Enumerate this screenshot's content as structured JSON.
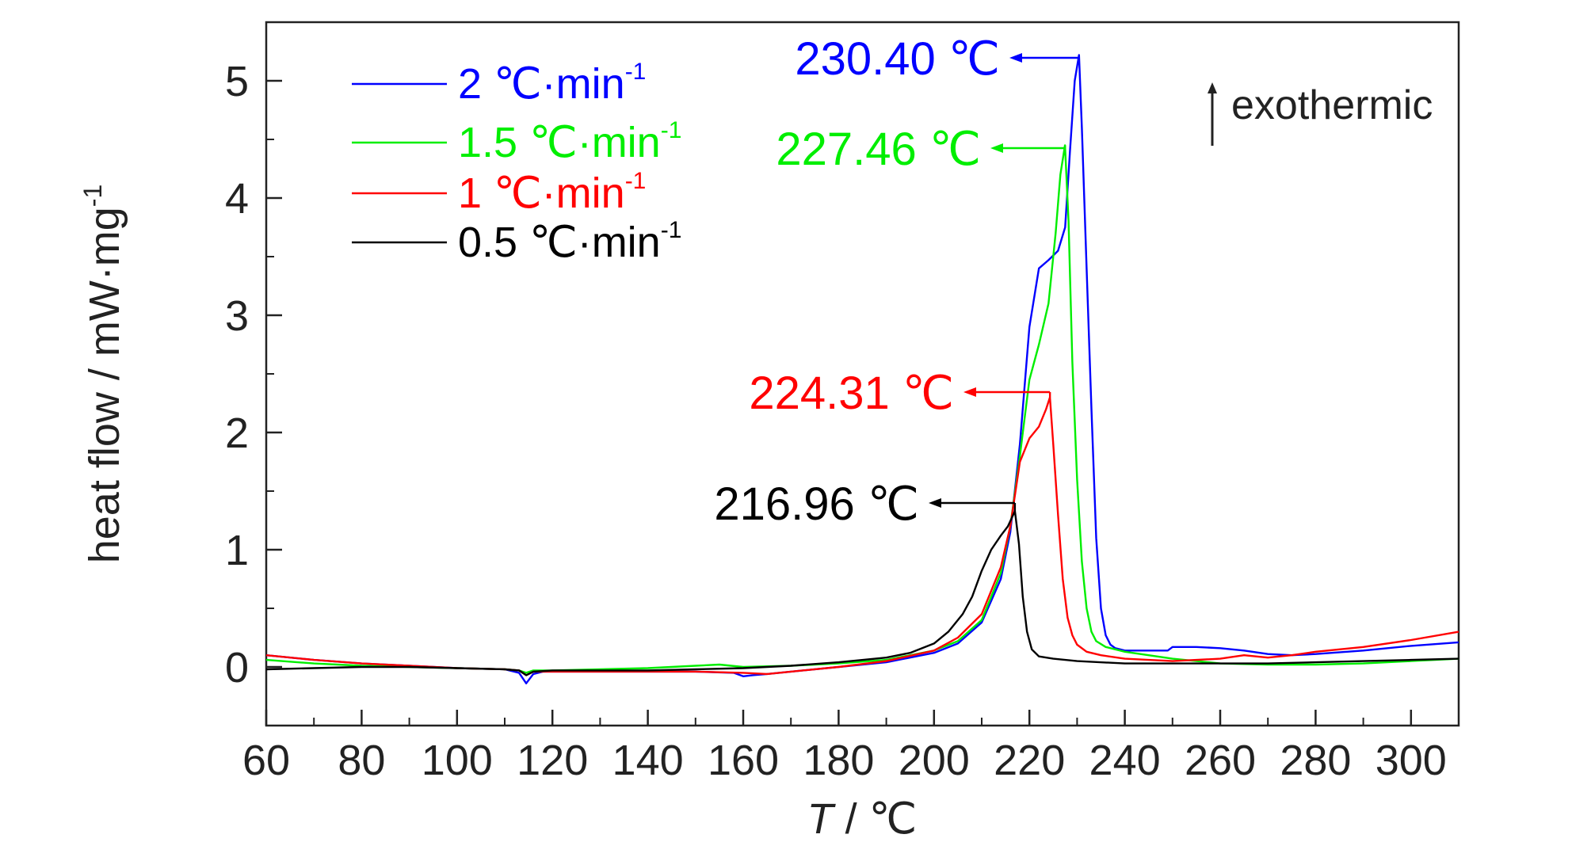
{
  "chart_data": {
    "type": "line",
    "xlabel": "T / ℃",
    "xlabel_italic_part": "T",
    "xlabel_rest": " / ℃",
    "ylabel": "heat flow / mW·mg",
    "ylabel_base": "heat flow / mW·mg",
    "ylabel_sup": "-1",
    "xlim": [
      60,
      310
    ],
    "ylim": [
      -0.5,
      5.5
    ],
    "x_ticks": [
      60,
      80,
      100,
      120,
      140,
      160,
      180,
      200,
      220,
      240,
      260,
      280,
      300
    ],
    "x_tick_labels": [
      "60",
      "80",
      "100",
      "120",
      "140",
      "160",
      "180",
      "200",
      "220",
      "240",
      "260",
      "280",
      "300"
    ],
    "y_ticks": [
      0,
      1,
      2,
      3,
      4,
      5
    ],
    "y_tick_labels": [
      "0",
      "1",
      "2",
      "3",
      "4",
      "5"
    ],
    "grid": false,
    "legend_position": "top-left",
    "exothermic_label": "exothermic",
    "series": [
      {
        "name": "2 ℃·min",
        "name_sup": "-1",
        "color": "#0000ff",
        "peak_label": "230.40 ℃",
        "peak": [
          230.4,
          5.22
        ],
        "x": [
          60,
          70,
          80,
          90,
          100,
          110,
          113,
          114.5,
          116,
          118,
          130,
          140,
          150,
          158,
          160,
          162,
          165,
          170,
          180,
          190,
          200,
          205,
          210,
          214,
          216,
          218,
          220,
          222,
          224,
          226,
          227.5,
          228.5,
          229.5,
          230.4,
          231,
          232,
          233,
          234,
          235,
          236,
          237,
          238,
          240,
          245,
          249,
          250,
          255,
          260,
          265,
          270,
          275,
          280,
          290,
          300,
          310
        ],
        "y": [
          0.1,
          0.06,
          0.03,
          0.01,
          -0.01,
          -0.02,
          -0.05,
          -0.14,
          -0.06,
          -0.04,
          -0.04,
          -0.04,
          -0.04,
          -0.05,
          -0.08,
          -0.07,
          -0.06,
          -0.04,
          0.0,
          0.04,
          0.12,
          0.2,
          0.38,
          0.75,
          1.15,
          1.9,
          2.9,
          3.4,
          3.47,
          3.55,
          3.75,
          4.4,
          5.0,
          5.22,
          4.6,
          3.4,
          2.2,
          1.1,
          0.5,
          0.27,
          0.19,
          0.16,
          0.14,
          0.14,
          0.14,
          0.17,
          0.17,
          0.16,
          0.14,
          0.11,
          0.1,
          0.11,
          0.14,
          0.18,
          0.21
        ]
      },
      {
        "name": "1.5 ℃·min",
        "name_sup": "-1",
        "color": "#00ee00",
        "peak_label": "227.46 ℃",
        "peak": [
          227.46,
          4.45
        ],
        "x": [
          60,
          70,
          80,
          90,
          100,
          110,
          113,
          114.5,
          116,
          120,
          130,
          140,
          150,
          155,
          160,
          170,
          180,
          190,
          200,
          205,
          210,
          214,
          216,
          218,
          220,
          222,
          224,
          225.5,
          226.5,
          227.46,
          228.2,
          229,
          230,
          231,
          232,
          233,
          234,
          236,
          240,
          250,
          260,
          270,
          280,
          290,
          300,
          310
        ],
        "y": [
          0.06,
          0.03,
          0.01,
          0.0,
          -0.01,
          -0.02,
          -0.03,
          -0.05,
          -0.03,
          -0.03,
          -0.02,
          -0.01,
          0.01,
          0.02,
          0.0,
          0.01,
          0.03,
          0.06,
          0.14,
          0.22,
          0.4,
          0.8,
          1.2,
          1.8,
          2.45,
          2.75,
          3.1,
          3.7,
          4.2,
          4.45,
          3.8,
          2.6,
          1.6,
          0.9,
          0.5,
          0.3,
          0.22,
          0.17,
          0.13,
          0.07,
          0.03,
          0.02,
          0.02,
          0.03,
          0.05,
          0.07
        ]
      },
      {
        "name": "1 ℃·min",
        "name_sup": "-1",
        "color": "#ff0000",
        "peak_label": "224.31 ℃",
        "peak": [
          224.31,
          2.3
        ],
        "x": [
          60,
          70,
          80,
          90,
          100,
          110,
          113,
          114.5,
          116,
          120,
          130,
          140,
          150,
          160,
          165,
          170,
          180,
          190,
          200,
          205,
          210,
          214,
          216,
          218,
          220,
          222,
          223.5,
          224.31,
          225,
          226,
          227,
          228,
          229,
          230,
          232,
          235,
          240,
          250,
          260,
          265,
          270,
          275,
          280,
          290,
          300,
          310
        ],
        "y": [
          0.1,
          0.06,
          0.03,
          0.01,
          -0.01,
          -0.02,
          -0.03,
          -0.07,
          -0.04,
          -0.04,
          -0.04,
          -0.04,
          -0.04,
          -0.05,
          -0.06,
          -0.04,
          0.0,
          0.05,
          0.14,
          0.25,
          0.45,
          0.85,
          1.2,
          1.75,
          1.95,
          2.05,
          2.2,
          2.3,
          1.9,
          1.3,
          0.75,
          0.42,
          0.27,
          0.19,
          0.13,
          0.1,
          0.07,
          0.05,
          0.07,
          0.1,
          0.08,
          0.1,
          0.13,
          0.17,
          0.23,
          0.3
        ]
      },
      {
        "name": "0.5 ℃·min",
        "name_sup": "-1",
        "color": "#000000",
        "peak_label": "216.96 ℃",
        "peak": [
          216.96,
          1.33
        ],
        "x": [
          60,
          70,
          80,
          90,
          100,
          110,
          113,
          114.5,
          116,
          120,
          130,
          140,
          150,
          160,
          170,
          180,
          190,
          195,
          200,
          203,
          206,
          208,
          210,
          212,
          214,
          215.5,
          216.96,
          217.8,
          218.6,
          219.5,
          220.5,
          222,
          225,
          230,
          240,
          250,
          260,
          270,
          280,
          290,
          300,
          310
        ],
        "y": [
          -0.02,
          -0.01,
          0.0,
          0.0,
          -0.01,
          -0.02,
          -0.03,
          -0.07,
          -0.04,
          -0.03,
          -0.03,
          -0.03,
          -0.02,
          -0.01,
          0.01,
          0.04,
          0.08,
          0.12,
          0.2,
          0.3,
          0.45,
          0.6,
          0.82,
          1.0,
          1.12,
          1.2,
          1.33,
          1.05,
          0.6,
          0.3,
          0.15,
          0.09,
          0.07,
          0.05,
          0.03,
          0.03,
          0.03,
          0.03,
          0.04,
          0.05,
          0.06,
          0.07
        ]
      }
    ]
  }
}
